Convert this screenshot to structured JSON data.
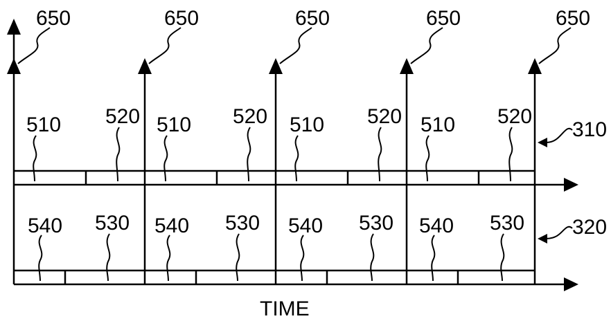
{
  "labels": {
    "event": "650",
    "row_top": "310",
    "row_bottom": "320",
    "top_first": "510",
    "top_second": "520",
    "bottom_first": "540",
    "bottom_second": "530",
    "axis": "TIME"
  }
}
